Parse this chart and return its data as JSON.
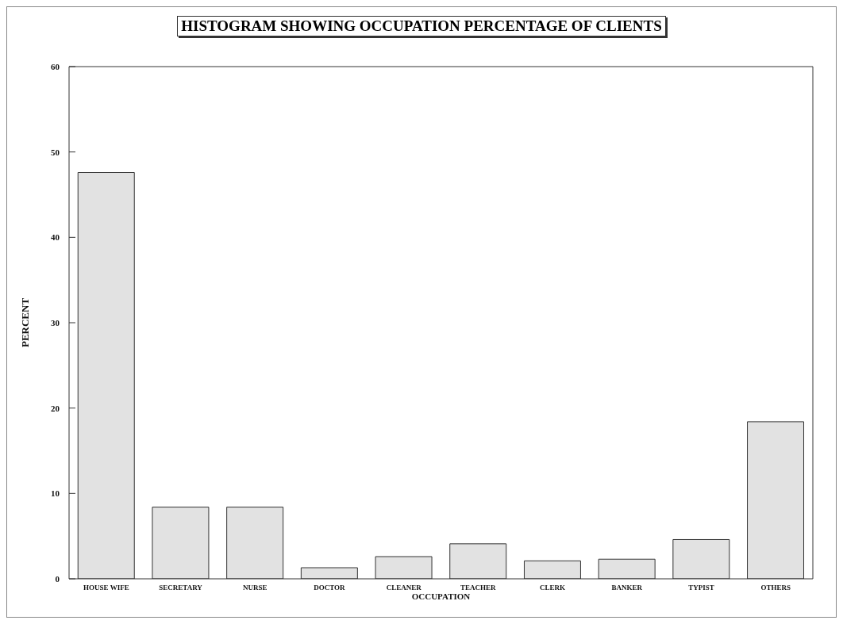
{
  "chart_data": {
    "type": "bar",
    "title": "HISTOGRAM SHOWING OCCUPATION PERCENTAGE OF CLIENTS",
    "xlabel": "OCCUPATION",
    "ylabel": "PERCENT",
    "categories": [
      "HOUSE WIFE",
      "SECRETARY",
      "NURSE",
      "DOCTOR",
      "CLEANER",
      "TEACHER",
      "CLERK",
      "BANKER",
      "TYPIST",
      "OTHERS"
    ],
    "values": [
      47.6,
      8.4,
      8.4,
      1.3,
      2.6,
      4.1,
      2.1,
      2.3,
      4.6,
      18.4
    ],
    "color": "#e2e2e2",
    "ylim": [
      0,
      60
    ],
    "yticks": [
      0,
      10,
      20,
      30,
      40,
      50,
      60
    ],
    "grid": false,
    "legend": false
  }
}
